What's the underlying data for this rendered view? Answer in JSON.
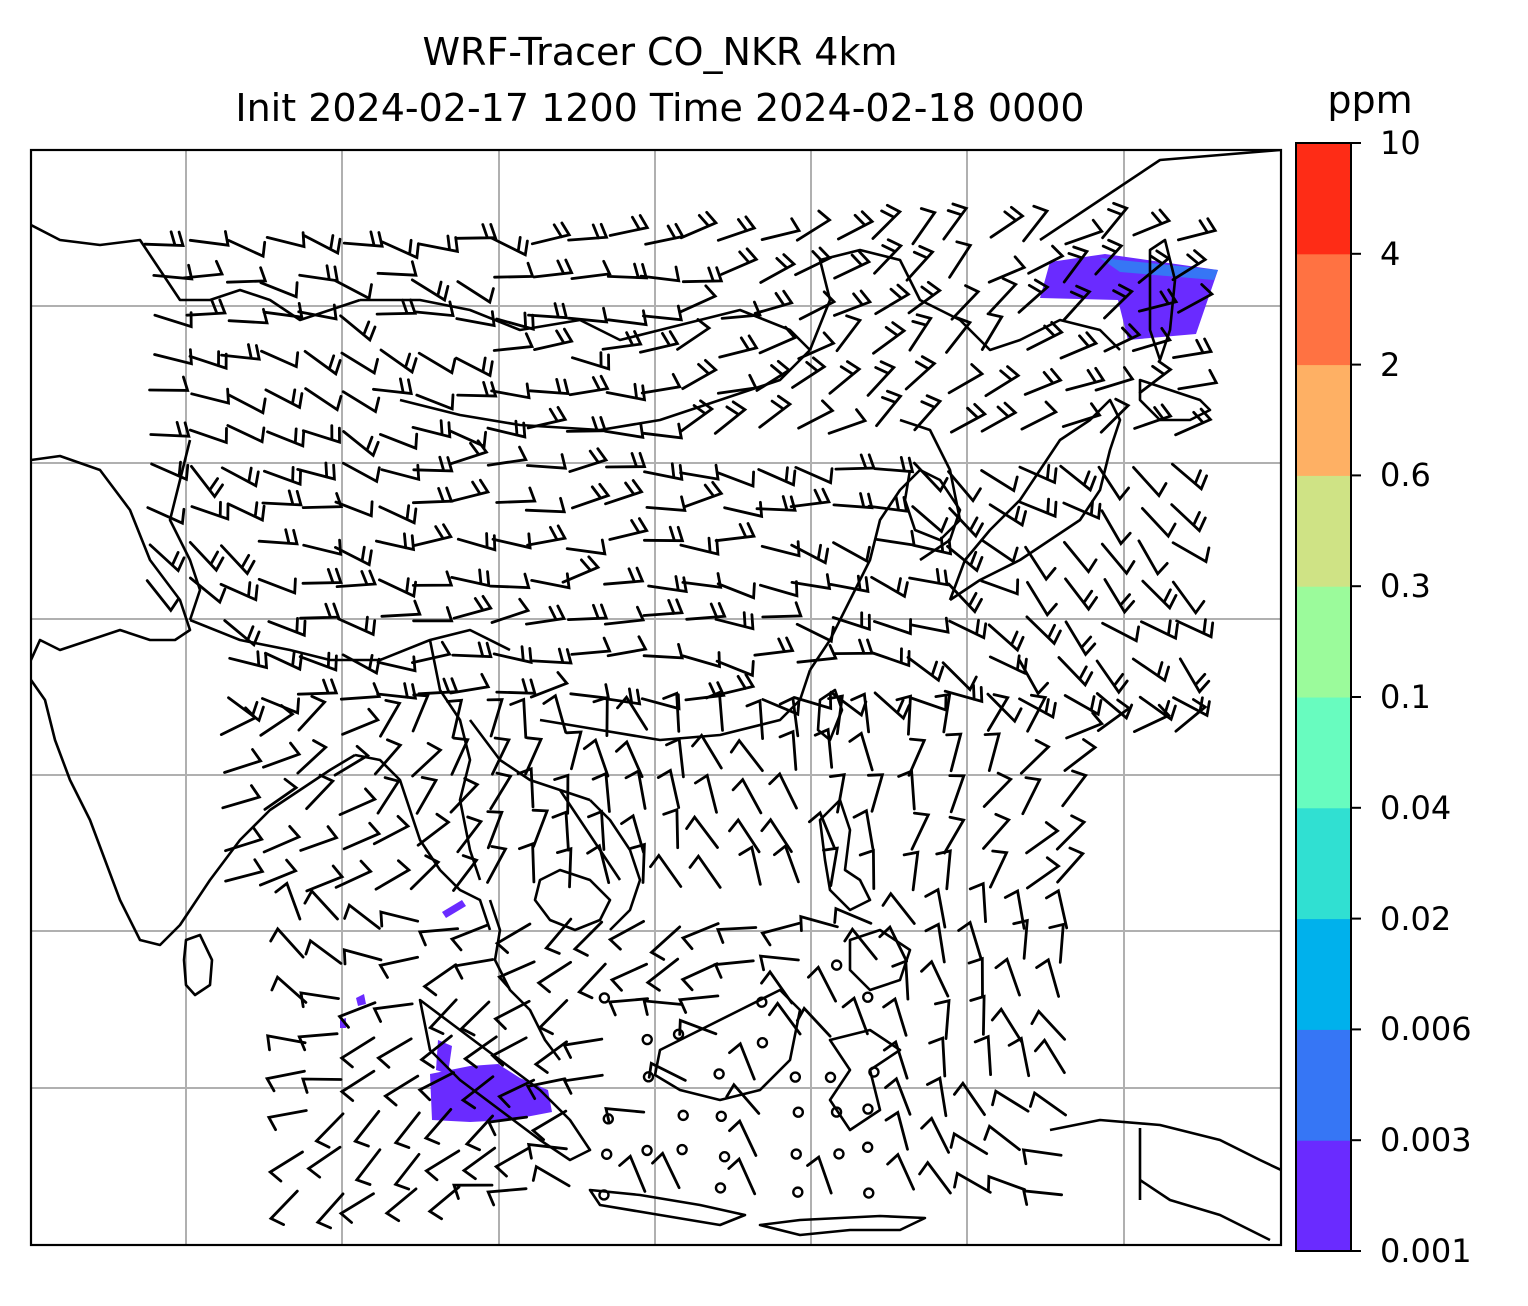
{
  "title": {
    "line1": "WRF-Tracer CO_NKR 4km",
    "line2": "Init 2024-02-17 1200 Time 2024-02-18 0000"
  },
  "colorbar": {
    "unit": "ppm",
    "ticks": [
      "0.001",
      "0.003",
      "0.006",
      "0.02",
      "0.04",
      "0.1",
      "0.3",
      "0.6",
      "2",
      "4",
      "10"
    ],
    "colors": [
      "#6a2bff",
      "#3676f5",
      "#00b1ec",
      "#30e0d2",
      "#68fcbf",
      "#9bfb9b",
      "#cfe385",
      "#feb064",
      "#ff7242",
      "#fe2c16"
    ]
  },
  "map": {
    "coastline_color": "#000000",
    "grid_color": "#b0b0b0",
    "tracer_color": "#6a2bff",
    "wind_barb_color": "#000000"
  }
}
